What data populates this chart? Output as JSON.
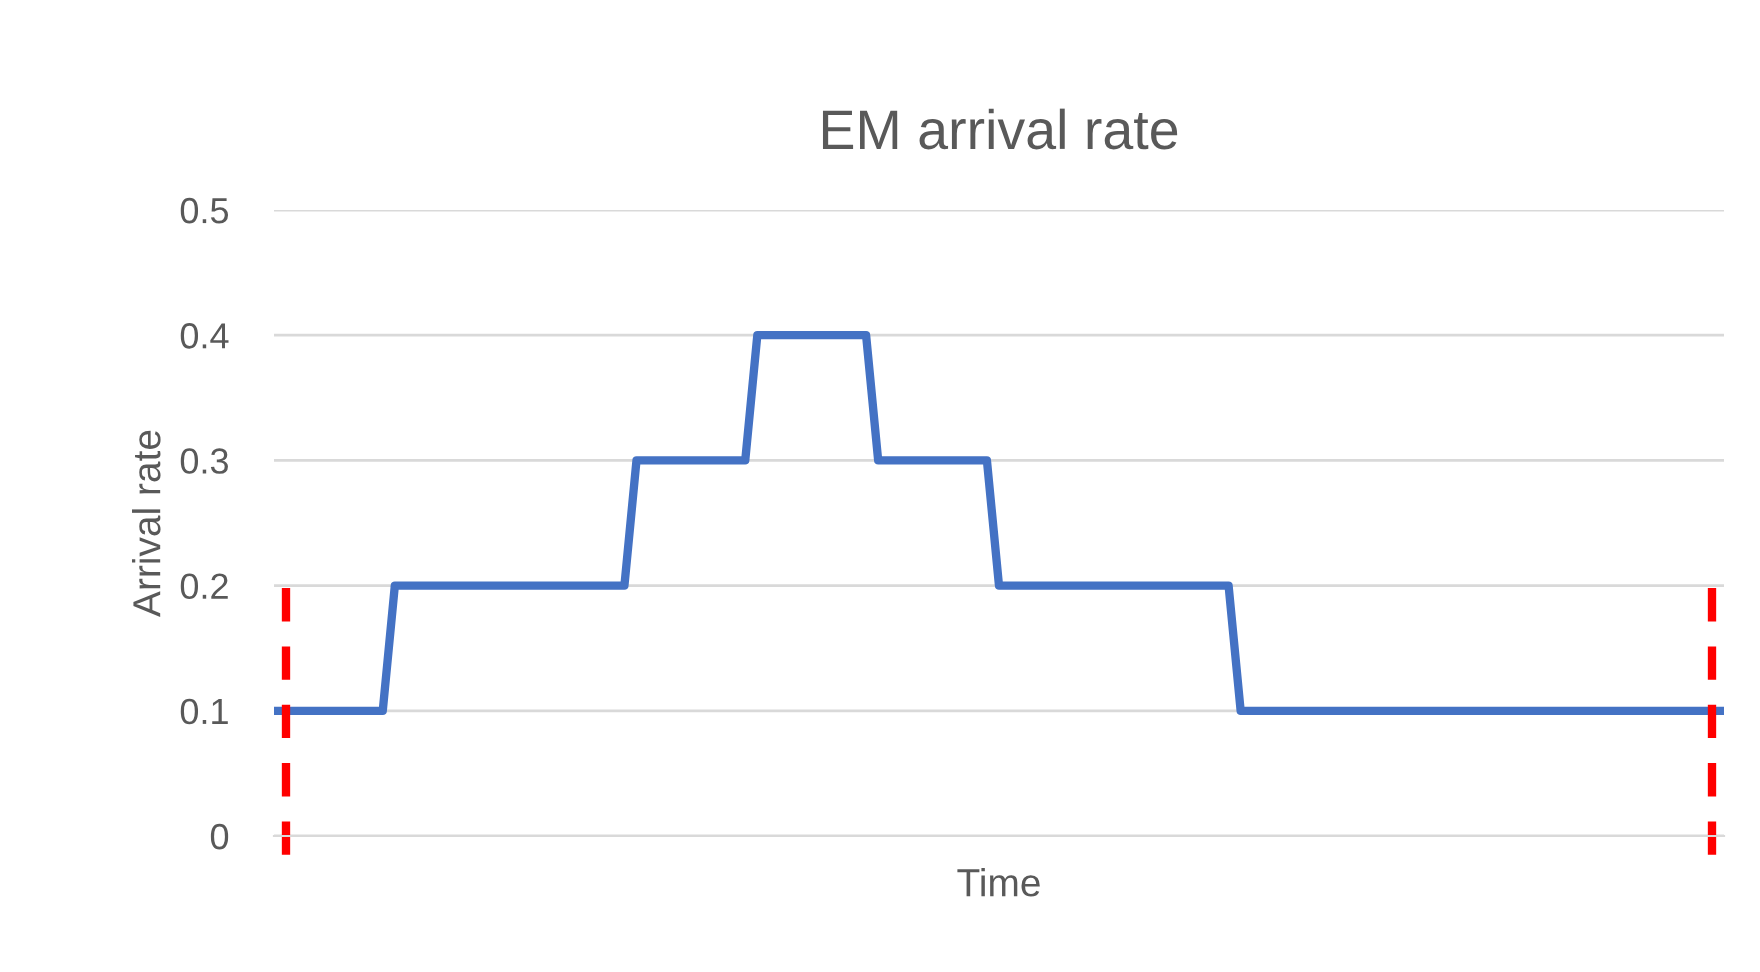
{
  "chart_data": {
    "type": "line",
    "title": "EM arrival rate",
    "xlabel": "Time",
    "ylabel": "Arrival rate",
    "categories": [
      null,
      null,
      null,
      null,
      null,
      null,
      null,
      null,
      null,
      null,
      null,
      null,
      null,
      null,
      null,
      null,
      null,
      null,
      null,
      null,
      null,
      null,
      null,
      null,
      null,
      null,
      null,
      null,
      null,
      null,
      null,
      null,
      null,
      null,
      null,
      null,
      null,
      null,
      null,
      null,
      null,
      null,
      null,
      null,
      null,
      null,
      null,
      null,
      null,
      null,
      null,
      null,
      null,
      null,
      null,
      null,
      null,
      null,
      null,
      null,
      null,
      null,
      null,
      null,
      null,
      null,
      null,
      null,
      null,
      null,
      null,
      null,
      null,
      null,
      null,
      null,
      null,
      null,
      null,
      null,
      null,
      null,
      null,
      null,
      null,
      null,
      null,
      null,
      null,
      null,
      null,
      null,
      null,
      null,
      null,
      null,
      null,
      null,
      null,
      null,
      null,
      null,
      null,
      null,
      null,
      null,
      null,
      null,
      null,
      null,
      null,
      null,
      null,
      null,
      null,
      null,
      null,
      null,
      null,
      null,
      null
    ],
    "series": [
      {
        "color": "#4472c4",
        "values": [
          0.1,
          0.1,
          0.1,
          0.1,
          0.1,
          0.1,
          0.1,
          0.1,
          0.1,
          0.1,
          0.2,
          0.2,
          0.2,
          0.2,
          0.2,
          0.2,
          0.2,
          0.2,
          0.2,
          0.2,
          0.2,
          0.2,
          0.2,
          0.2,
          0.2,
          0.2,
          0.2,
          0.2,
          0.2,
          0.2,
          0.3,
          0.3,
          0.3,
          0.3,
          0.3,
          0.3,
          0.3,
          0.3,
          0.3,
          0.3,
          0.4,
          0.4,
          0.4,
          0.4,
          0.4,
          0.4,
          0.4,
          0.4,
          0.4,
          0.4,
          0.3,
          0.3,
          0.3,
          0.3,
          0.3,
          0.3,
          0.3,
          0.3,
          0.3,
          0.3,
          0.2,
          0.2,
          0.2,
          0.2,
          0.2,
          0.2,
          0.2,
          0.2,
          0.2,
          0.2,
          0.2,
          0.2,
          0.2,
          0.2,
          0.2,
          0.2,
          0.2,
          0.2,
          0.2,
          0.2,
          0.1,
          0.1,
          0.1,
          0.1,
          0.1,
          0.1,
          0.1,
          0.1,
          0.1,
          0.1,
          0.1,
          0.1,
          0.1,
          0.1,
          0.1,
          0.1,
          0.1,
          0.1,
          0.1,
          0.1,
          0.1,
          0.1,
          0.1,
          0.1,
          0.1,
          0.1,
          0.1,
          0.1,
          0.1,
          0.1,
          0.1,
          0.1,
          0.1,
          0.1,
          0.1,
          0.1,
          0.1,
          0.1,
          0.1,
          0.1,
          0.1
        ]
      }
    ],
    "ylim": [
      0,
      0.5
    ],
    "yticks": [
      0,
      0.1,
      0.2,
      0.3,
      0.4,
      0.5
    ],
    "grid": "y"
  }
}
